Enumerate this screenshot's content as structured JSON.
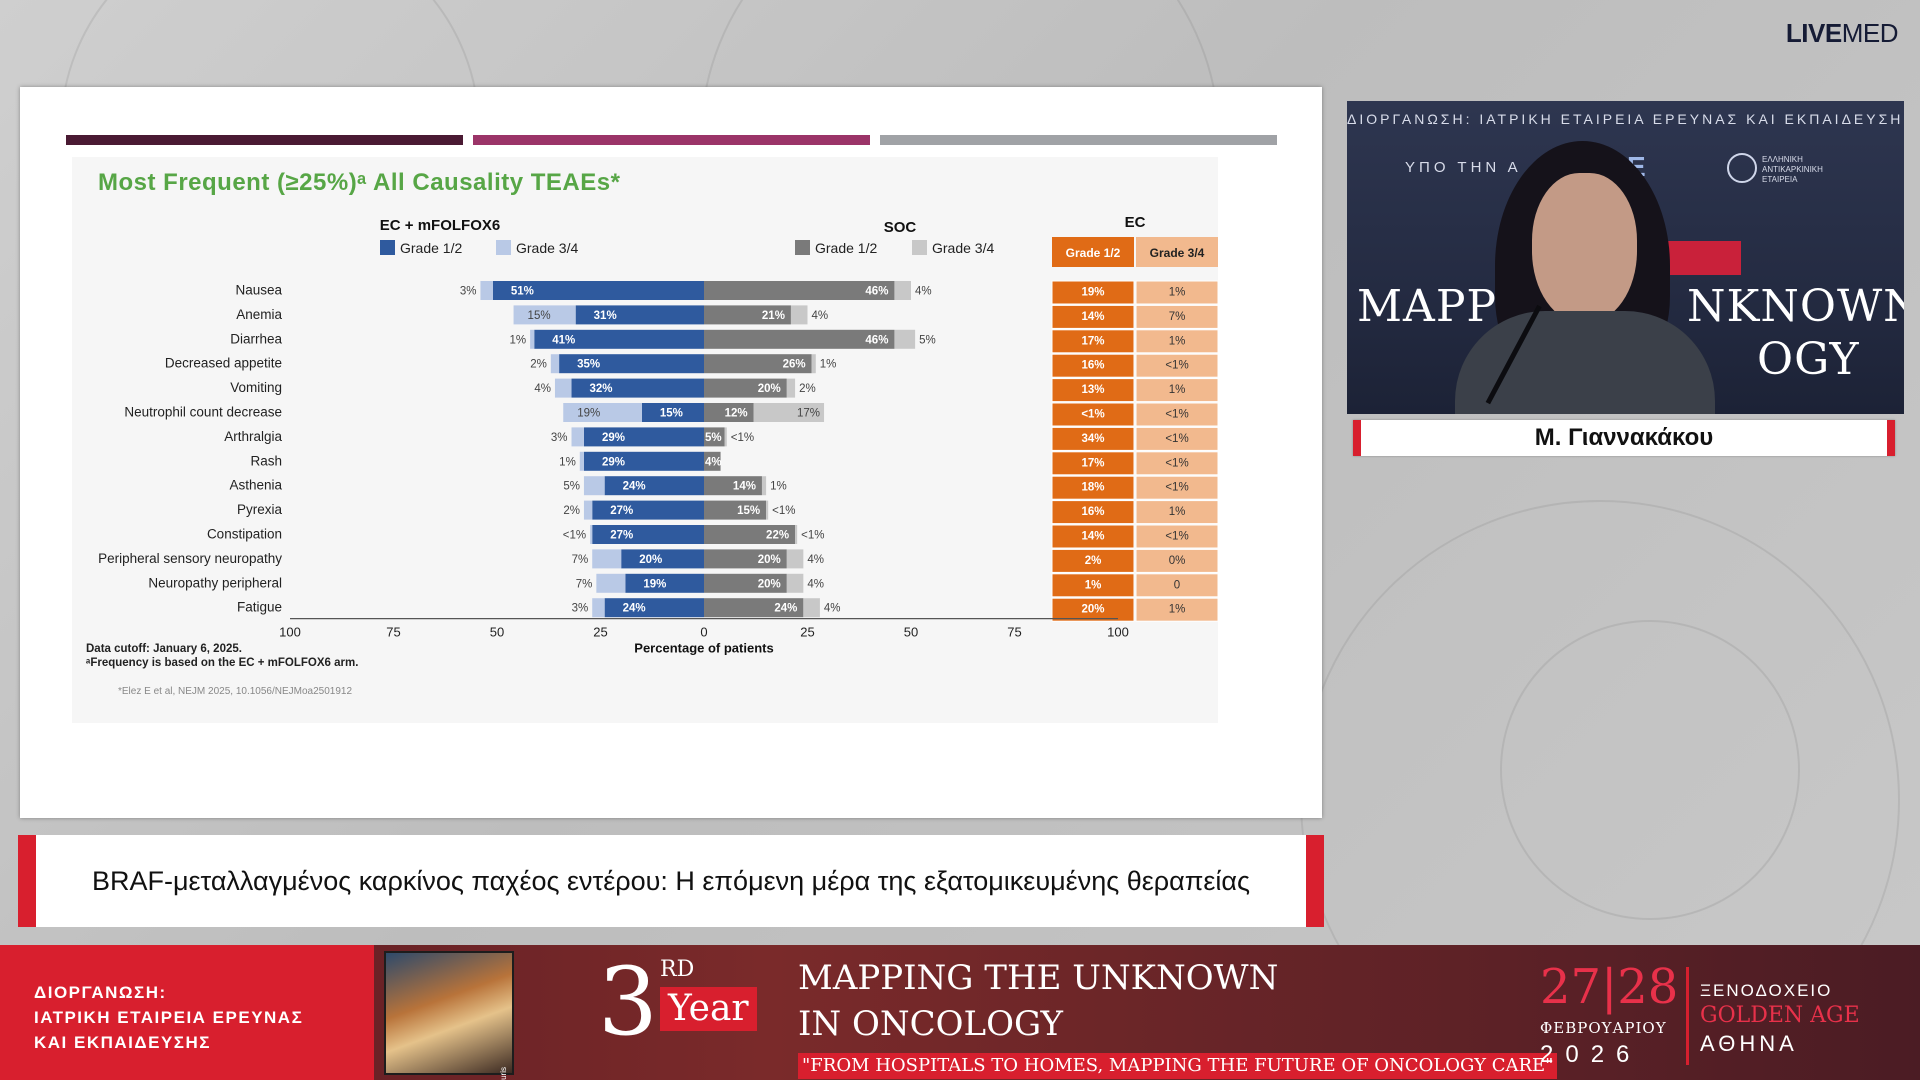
{
  "brand": {
    "logo_bold": "LIVE",
    "logo_rest": "MED"
  },
  "slide": {
    "bar_colors": [
      "#4a1a33",
      "#9b3468",
      "#a0a2a6"
    ],
    "footnote_cutoff": "Data cutoff: January 6, 2025.",
    "footnote_frequency": "ᵃFrequency is based on the EC + mFOLFOX6 arm.",
    "reference": "*Elez E et al, NEJM 2025, 10.1056/NEJMoa2501912"
  },
  "chart_data": {
    "type": "bar",
    "title": "Most Frequent (≥25%)ᵃ All Causality TEAEs*",
    "xlabel": "Percentage of patients",
    "x_ticks_left": [
      "100",
      "75",
      "50",
      "25",
      "0"
    ],
    "x_ticks_right": [
      "25",
      "50",
      "75",
      "100"
    ],
    "xlim": [
      -100,
      100
    ],
    "groups": [
      {
        "name": "EC + mFOLFOX6",
        "legend": [
          "Grade 1/2",
          "Grade 3/4"
        ],
        "colors": [
          "#2f5a9e",
          "#b9c9e6"
        ]
      },
      {
        "name": "SOC",
        "legend": [
          "Grade 1/2",
          "Grade 3/4"
        ],
        "colors": [
          "#7a7a7a",
          "#c8c8c8"
        ]
      }
    ],
    "table_header": "EC",
    "table_columns": [
      "Grade 1/2",
      "Grade 3/4"
    ],
    "categories": [
      "Nausea",
      "Anemia",
      "Diarrhea",
      "Decreased appetite",
      "Vomiting",
      "Neutrophil count decrease",
      "Arthralgia",
      "Rash",
      "Asthenia",
      "Pyrexia",
      "Constipation",
      "Peripheral sensory neuropathy",
      "Neuropathy peripheral",
      "Fatigue"
    ],
    "ec_grade12": [
      51,
      31,
      41,
      35,
      32,
      15,
      29,
      29,
      24,
      27,
      27,
      20,
      19,
      24
    ],
    "ec_grade34": [
      3,
      15,
      1,
      2,
      4,
      19,
      3,
      1,
      5,
      2,
      0.5,
      7,
      7,
      3
    ],
    "ec_grade12_labels": [
      "51%",
      "31%",
      "41%",
      "35%",
      "32%",
      "15%",
      "29%",
      "29%",
      "24%",
      "27%",
      "27%",
      "20%",
      "19%",
      "24%"
    ],
    "ec_grade34_labels": [
      "3%",
      "15%",
      "1%",
      "2%",
      "4%",
      "19%",
      "3%",
      "1%",
      "5%",
      "2%",
      "<1%",
      "7%",
      "7%",
      "3%"
    ],
    "soc_grade12": [
      46,
      21,
      46,
      26,
      20,
      12,
      5,
      4,
      14,
      15,
      22,
      20,
      20,
      24
    ],
    "soc_grade34": [
      4,
      4,
      5,
      1,
      2,
      17,
      0.5,
      0,
      1,
      0.5,
      0.5,
      4,
      4,
      4
    ],
    "soc_grade12_labels": [
      "46%",
      "21%",
      "46%",
      "26%",
      "20%",
      "12%",
      "5%",
      "4%",
      "14%",
      "15%",
      "22%",
      "20%",
      "20%",
      "24%"
    ],
    "soc_grade34_labels": [
      "4%",
      "4%",
      "5%",
      "1%",
      "2%",
      "17%",
      "<1%",
      "",
      "1%",
      "<1%",
      "<1%",
      "4%",
      "4%",
      "4%"
    ],
    "table_grade12": [
      "19%",
      "14%",
      "17%",
      "16%",
      "13%",
      "<1%",
      "34%",
      "17%",
      "18%",
      "16%",
      "14%",
      "2%",
      "1%",
      "20%"
    ],
    "table_grade34": [
      "1%",
      "7%",
      "1%",
      "<1%",
      "1%",
      "<1%",
      "<1%",
      "<1%",
      "<1%",
      "1%",
      "<1%",
      "0%",
      "0",
      "1%"
    ],
    "table_colors": [
      "#e06b16",
      "#f2b98e"
    ]
  },
  "webcam": {
    "top_text": "ΔΙΟΡΓΑΝΩΣΗ: ΙΑΤΡΙΚΗ ΕΤΑΙΡΕΙΑ ΕΡΕΥΝΑΣ ΚΑΙ ΕΚΠΑΙΔΕΥΣΗΣ",
    "under_text": "ΥΠΟ ΤΗΝ Α",
    "logo_ope": "ΟΠΕ",
    "logo_society": "ΕΛΛΗΝΙΚΗ ΑΝΤΙΚΑΡΚΙΝΙΚΗ ΕΤΑΙΡΕΙΑ",
    "backdrop_1": "MAPPI",
    "backdrop_2": "NKNOWN",
    "backdrop_3": "OGY"
  },
  "speaker": {
    "name": "Μ. Γιαννακάκου"
  },
  "caption": {
    "text": "BRAF-μεταλλαγμένος καρκίνος παχέος εντέρου: Η επόμενη μέρα της εξατομικευμένης θεραπείας"
  },
  "banner": {
    "org_lines": [
      "ΔΙΟΡΓΑΝΩΣΗ:",
      "ΙΑΤΡΙΚΗ ΕΤΑΙΡΕΙΑ ΕΡΕΥΝΑΣ",
      "ΚΑΙ ΕΚΠΑΙΔΕΥΣΗΣ"
    ],
    "art_signature": "C.Billouris",
    "edition_number": "3",
    "edition_suffix": "RD",
    "edition_year": "Year",
    "title_line1": "MAPPING THE UNKNOWN",
    "title_line2": "IN ONCOLOGY",
    "subtitle": "\"FROM HOSPITALS TO HOMES, MAPPING THE FUTURE OF ONCOLOGY CARE\"",
    "date": "27|28",
    "month": "ΦΕΒΡΟΥΑΡΙΟΥ",
    "year": "2026",
    "hotel_label": "ΞΕΝΟΔΟΧΕΙΟ",
    "hotel_name": "GOLDEN AGE",
    "city": "ΑΘΗΝΑ"
  }
}
